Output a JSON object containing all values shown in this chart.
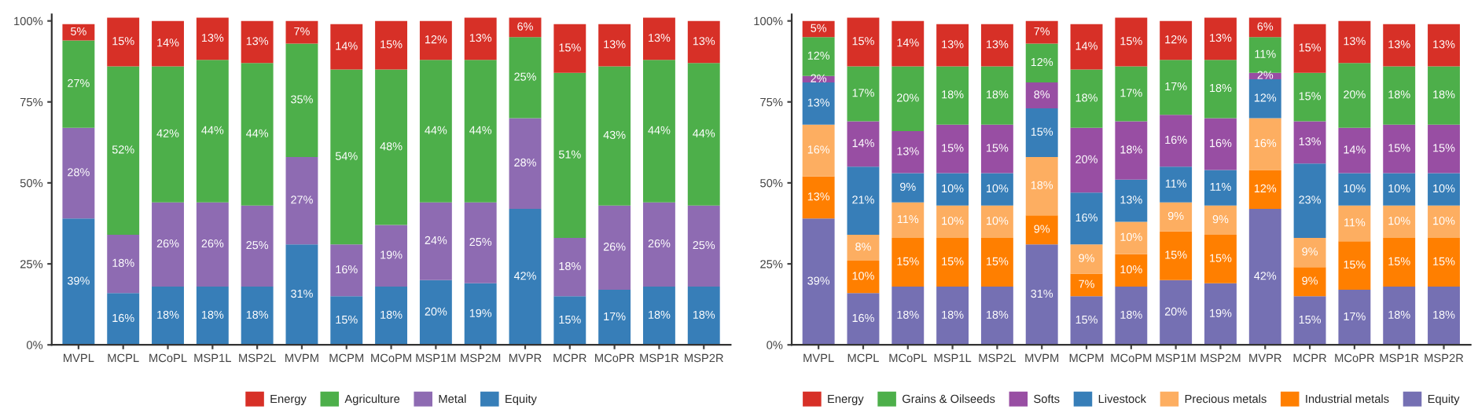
{
  "chart_data": [
    {
      "type": "bar",
      "stacked": true,
      "legend": "bottom",
      "grid": false,
      "categories": [
        "MVPL",
        "MCPL",
        "MCoPL",
        "MSP1L",
        "MSP2L",
        "MVPM",
        "MCPM",
        "MCoPM",
        "MSP1M",
        "MSP2M",
        "MVPR",
        "MCPR",
        "MCoPR",
        "MSP1R",
        "MSP2R"
      ],
      "ylim": [
        0,
        102
      ],
      "yticks": [
        {
          "value": 0,
          "label": "0%"
        },
        {
          "value": 25,
          "label": "25%"
        },
        {
          "value": 50,
          "label": "50%"
        },
        {
          "value": 75,
          "label": "75%"
        },
        {
          "value": 100,
          "label": "100%"
        }
      ],
      "series": [
        {
          "name": "Equity",
          "color": "#377eb8",
          "values": [
            39,
            16,
            18,
            18,
            18,
            31,
            15,
            18,
            20,
            19,
            42,
            15,
            17,
            18,
            18
          ],
          "value_labels": [
            "39%",
            "16%",
            "18%",
            "18%",
            "18%",
            "31%",
            "15%",
            "18%",
            "20%",
            "19%",
            "42%",
            "15%",
            "17%",
            "18%",
            "18%"
          ]
        },
        {
          "name": "Metal",
          "color": "#8e6bb2",
          "values": [
            28,
            18,
            26,
            26,
            25,
            27,
            16,
            19,
            24,
            25,
            28,
            18,
            26,
            26,
            25
          ],
          "value_labels": [
            "28%",
            "18%",
            "26%",
            "26%",
            "25%",
            "27%",
            "16%",
            "19%",
            "24%",
            "25%",
            "28%",
            "18%",
            "26%",
            "26%",
            "25%"
          ]
        },
        {
          "name": "Agriculture",
          "color": "#4daf4a",
          "values": [
            27,
            52,
            42,
            44,
            44,
            35,
            54,
            48,
            44,
            44,
            25,
            51,
            43,
            44,
            44
          ],
          "value_labels": [
            "27%",
            "52%",
            "42%",
            "44%",
            "44%",
            "35%",
            "54%",
            "48%",
            "44%",
            "44%",
            "25%",
            "51%",
            "43%",
            "44%",
            "44%"
          ]
        },
        {
          "name": "Energy",
          "color": "#d73027",
          "values": [
            5,
            15,
            14,
            13,
            13,
            7,
            14,
            15,
            12,
            13,
            6,
            15,
            13,
            13,
            13
          ],
          "value_labels": [
            "5%",
            "15%",
            "14%",
            "13%",
            "13%",
            "7%",
            "14%",
            "15%",
            "12%",
            "13%",
            "6%",
            "15%",
            "13%",
            "13%",
            "13%"
          ]
        }
      ]
    },
    {
      "type": "bar",
      "stacked": true,
      "legend": "bottom",
      "grid": false,
      "categories": [
        "MVPL",
        "MCPL",
        "MCoPL",
        "MSP1L",
        "MSP2L",
        "MVPM",
        "MCPM",
        "MCoPM",
        "MSP1M",
        "MSP2M",
        "MVPR",
        "MCPR",
        "MCoPR",
        "MSP1R",
        "MSP2R"
      ],
      "ylim": [
        0,
        102
      ],
      "yticks": [
        {
          "value": 0,
          "label": "0%"
        },
        {
          "value": 25,
          "label": "25%"
        },
        {
          "value": 50,
          "label": "50%"
        },
        {
          "value": 75,
          "label": "75%"
        },
        {
          "value": 100,
          "label": "100%"
        }
      ],
      "series": [
        {
          "name": "Equity",
          "color": "#7570b3",
          "values": [
            39,
            16,
            18,
            18,
            18,
            31,
            15,
            18,
            20,
            19,
            42,
            15,
            17,
            18,
            18
          ],
          "value_labels": [
            "39%",
            "16%",
            "18%",
            "18%",
            "18%",
            "31%",
            "15%",
            "18%",
            "20%",
            "19%",
            "42%",
            "15%",
            "17%",
            "18%",
            "18%"
          ]
        },
        {
          "name": "Industrial metals",
          "color": "#ff7f00",
          "values": [
            13,
            10,
            15,
            15,
            15,
            9,
            7,
            10,
            15,
            15,
            12,
            9,
            15,
            15,
            15
          ],
          "value_labels": [
            "13%",
            "10%",
            "15%",
            "15%",
            "15%",
            "9%",
            "7%",
            "10%",
            "15%",
            "15%",
            "12%",
            "9%",
            "15%",
            "15%",
            "15%"
          ]
        },
        {
          "name": "Precious metals",
          "color": "#fdae61",
          "values": [
            16,
            8,
            11,
            10,
            10,
            18,
            9,
            10,
            9,
            9,
            16,
            9,
            11,
            10,
            10
          ],
          "value_labels": [
            "16%",
            "8%",
            "11%",
            "10%",
            "10%",
            "18%",
            "9%",
            "10%",
            "9%",
            "9%",
            "16%",
            "9%",
            "11%",
            "10%",
            "10%"
          ]
        },
        {
          "name": "Livestock",
          "color": "#377eb8",
          "values": [
            13,
            21,
            9,
            10,
            10,
            15,
            16,
            13,
            11,
            11,
            12,
            23,
            10,
            10,
            10
          ],
          "value_labels": [
            "13%",
            "21%",
            "9%",
            "10%",
            "10%",
            "15%",
            "16%",
            "13%",
            "11%",
            "11%",
            "12%",
            "23%",
            "10%",
            "10%",
            "10%"
          ]
        },
        {
          "name": "Softs",
          "color": "#984ea3",
          "values": [
            2,
            14,
            13,
            15,
            15,
            8,
            20,
            18,
            16,
            16,
            2,
            13,
            14,
            15,
            15
          ],
          "value_labels": [
            "2%",
            "14%",
            "13%",
            "15%",
            "15%",
            "8%",
            "20%",
            "18%",
            "16%",
            "16%",
            "2%",
            "13%",
            "14%",
            "15%",
            "15%"
          ]
        },
        {
          "name": "Grains & Oilseeds",
          "color": "#4daf4a",
          "values": [
            12,
            17,
            20,
            18,
            18,
            12,
            18,
            17,
            17,
            18,
            11,
            15,
            20,
            18,
            18
          ],
          "value_labels": [
            "12%",
            "17%",
            "20%",
            "18%",
            "18%",
            "12%",
            "18%",
            "17%",
            "17%",
            "18%",
            "11%",
            "15%",
            "20%",
            "18%",
            "18%"
          ]
        },
        {
          "name": "Energy",
          "color": "#d73027",
          "values": [
            5,
            15,
            14,
            13,
            13,
            7,
            14,
            15,
            12,
            13,
            6,
            15,
            13,
            13,
            13
          ],
          "value_labels": [
            "5%",
            "15%",
            "14%",
            "13%",
            "13%",
            "7%",
            "14%",
            "15%",
            "12%",
            "13%",
            "6%",
            "15%",
            "13%",
            "13%",
            "13%"
          ]
        }
      ]
    }
  ]
}
